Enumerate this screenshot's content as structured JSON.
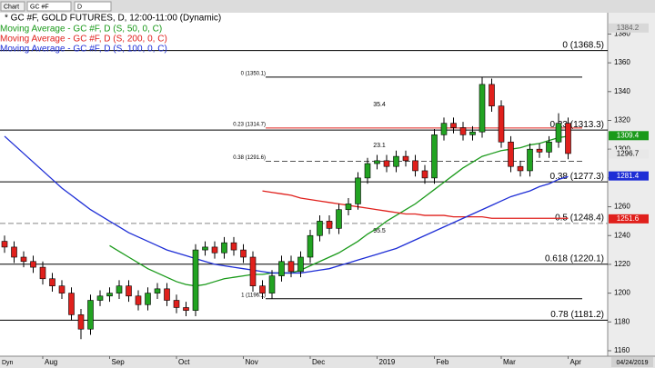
{
  "toolbar": {
    "tab": "Chart",
    "symbol": "GC #F",
    "interval": "D"
  },
  "chart_data": {
    "type": "candlestick",
    "title": "* GC #F, GOLD FUTURES, D, 12:00-11:00 (Dynamic)",
    "categories": [
      null,
      null,
      null,
      null,
      "Aug",
      null,
      null,
      null,
      null,
      null,
      null,
      "Sep",
      null,
      null,
      null,
      null,
      null,
      null,
      "Oct",
      null,
      null,
      null,
      null,
      null,
      null,
      "Nov",
      null,
      null,
      null,
      null,
      null,
      null,
      "Dec",
      null,
      null,
      null,
      null,
      null,
      null,
      "2019",
      null,
      null,
      null,
      null,
      null,
      "Feb",
      null,
      null,
      null,
      null,
      null,
      null,
      "Mar",
      null,
      null,
      null,
      null,
      null,
      null,
      "Apr"
    ],
    "open": [
      1236,
      1232,
      1225,
      1222,
      1218,
      1210,
      1205,
      1200,
      1185,
      1175,
      1195,
      1198,
      1200,
      1205,
      1198,
      1192,
      1200,
      1203,
      1195,
      1190,
      1188,
      1230,
      1232,
      1228,
      1235,
      1230,
      1225,
      1205,
      1200,
      1212,
      1222,
      1215,
      1225,
      1240,
      1250,
      1245,
      1258,
      1262,
      1280,
      1290,
      1292,
      1288,
      1295,
      1292,
      1285,
      1280,
      1310,
      1318,
      1315,
      1310,
      1312,
      1345,
      1330,
      1305,
      1288,
      1285,
      1300,
      1298,
      1305,
      1318
    ],
    "high": [
      1240,
      1236,
      1229,
      1226,
      1222,
      1214,
      1209,
      1204,
      1189,
      1199,
      1202,
      1204,
      1209,
      1209,
      1202,
      1204,
      1207,
      1207,
      1199,
      1194,
      1234,
      1236,
      1236,
      1239,
      1239,
      1234,
      1229,
      1209,
      1216,
      1226,
      1226,
      1229,
      1244,
      1254,
      1254,
      1262,
      1266,
      1284,
      1294,
      1296,
      1296,
      1299,
      1299,
      1296,
      1289,
      1314,
      1322,
      1322,
      1319,
      1316,
      1350,
      1349,
      1334,
      1309,
      1292,
      1304,
      1304,
      1309,
      1325,
      1322
    ],
    "low": [
      1228,
      1221,
      1218,
      1214,
      1206,
      1201,
      1196,
      1181,
      1168,
      1171,
      1191,
      1194,
      1196,
      1194,
      1188,
      1188,
      1196,
      1191,
      1186,
      1184,
      1184,
      1226,
      1224,
      1224,
      1226,
      1221,
      1201,
      1196,
      1196,
      1208,
      1211,
      1211,
      1221,
      1236,
      1241,
      1241,
      1254,
      1258,
      1276,
      1286,
      1284,
      1284,
      1288,
      1281,
      1276,
      1276,
      1306,
      1311,
      1306,
      1306,
      1308,
      1326,
      1301,
      1284,
      1281,
      1281,
      1294,
      1294,
      1301,
      1293
    ],
    "close": [
      1232,
      1225,
      1222,
      1218,
      1210,
      1205,
      1200,
      1185,
      1175,
      1195,
      1198,
      1200,
      1205,
      1198,
      1192,
      1200,
      1203,
      1195,
      1190,
      1188,
      1230,
      1232,
      1228,
      1235,
      1230,
      1225,
      1205,
      1200,
      1212,
      1222,
      1215,
      1225,
      1240,
      1250,
      1245,
      1258,
      1262,
      1280,
      1290,
      1292,
      1288,
      1295,
      1292,
      1285,
      1280,
      1310,
      1318,
      1315,
      1310,
      1312,
      1345,
      1330,
      1305,
      1288,
      1285,
      1300,
      1298,
      1305,
      1318,
      1297
    ],
    "up_color": "#22a322",
    "down_color": "#e0201c",
    "series": [
      {
        "name": "Moving Average - GC #F, D (S, 50, 0, C)",
        "color": "#1a9a1a",
        "values": [
          null,
          null,
          null,
          null,
          null,
          null,
          null,
          null,
          null,
          null,
          null,
          1233,
          1229,
          1225,
          1221,
          1217,
          1214,
          1211,
          1208,
          1206,
          1205,
          1206,
          1208,
          1210,
          1211,
          1212,
          1213,
          1213,
          1214,
          1214,
          1214,
          1216,
          1219,
          1222,
          1225,
          1228,
          1232,
          1236,
          1241,
          1245,
          1250,
          1254,
          1258,
          1262,
          1267,
          1272,
          1277,
          1282,
          1287,
          1291,
          1295,
          1297,
          1299,
          1300,
          1301,
          1303,
          1304,
          1306,
          1308,
          1309
        ]
      },
      {
        "name": "Moving Average - GC #F, D (S, 200, 0, C)",
        "color": "#e0201c",
        "values": [
          null,
          null,
          null,
          null,
          null,
          null,
          null,
          null,
          null,
          null,
          null,
          null,
          null,
          null,
          null,
          null,
          null,
          null,
          null,
          null,
          null,
          null,
          null,
          null,
          null,
          null,
          null,
          1271,
          1270,
          1269,
          1268,
          1266,
          1265,
          1264,
          1263,
          1262,
          1261,
          1260,
          1259,
          1258,
          1257,
          1256,
          1255,
          1255,
          1254,
          1254,
          1254,
          1253,
          1253,
          1253,
          1253,
          1252,
          1252,
          1252,
          1252,
          1252,
          1252,
          1252,
          1252,
          1252
        ]
      },
      {
        "name": "Moving Average - GC #F, D (S, 100, 0, C)",
        "color": "#1e2ed6",
        "values": [
          1309,
          1303,
          1297,
          1291,
          1285,
          1279,
          1273,
          1268,
          1263,
          1258,
          1254,
          1250,
          1246,
          1242,
          1239,
          1236,
          1233,
          1230,
          1228,
          1226,
          1224,
          1222,
          1220,
          1219,
          1218,
          1217,
          1216,
          1215,
          1214,
          1214,
          1214,
          1214,
          1215,
          1216,
          1217,
          1219,
          1221,
          1223,
          1225,
          1227,
          1229,
          1231,
          1234,
          1237,
          1240,
          1243,
          1246,
          1249,
          1252,
          1255,
          1258,
          1261,
          1264,
          1267,
          1269,
          1271,
          1274,
          1276,
          1279,
          1281
        ]
      }
    ],
    "ylim": [
      1156.2,
      1394.8
    ],
    "yticks": [
      1160,
      1180,
      1200,
      1220,
      1240,
      1260,
      1280,
      1300,
      1320,
      1340,
      1360,
      1380
    ],
    "price_tags": [
      {
        "value": 1384.2,
        "color": "#d8d8d8",
        "text_color": "#666666"
      },
      {
        "value": 1309.4,
        "color": "#1a9a1a",
        "text_color": "#ffffff"
      },
      {
        "value": 1296.7,
        "color": "#e8e8e8",
        "text_color": "#000000"
      },
      {
        "value": 1281.4,
        "color": "#1e2ed6",
        "text_color": "#ffffff"
      },
      {
        "value": 1251.6,
        "color": "#e0201c",
        "text_color": "#ffffff"
      }
    ],
    "fib_levels": [
      {
        "label": "0 (1368.5)",
        "value": 1368.5,
        "color": "#000000",
        "style": "solid"
      },
      {
        "label": "0.23 (1313.3)",
        "value": 1313.3,
        "color": "#000000",
        "style": "solid"
      },
      {
        "label": "0.38 (1277.3)",
        "value": 1277.3,
        "color": "#000000",
        "style": "solid"
      },
      {
        "label": "0.5 (1248.4)",
        "value": 1248.4,
        "color": "#888888",
        "style": "dashed"
      },
      {
        "label": "0.618 (1220.1)",
        "value": 1220.1,
        "color": "#000000",
        "style": "solid"
      },
      {
        "label": "0.78 (1181.2)",
        "value": 1181.2,
        "color": "#000000",
        "style": "solid"
      }
    ],
    "fib_levels_2": [
      {
        "label": "0 (1350.1)",
        "value": 1350.1,
        "color": "#000000",
        "style": "solid"
      },
      {
        "label": "0.23 (1314.7)",
        "value": 1314.7,
        "color": "#e0201c",
        "style": "solid"
      },
      {
        "label": "0.38 (1291.6)",
        "value": 1291.6,
        "color": "#555555",
        "style": "dashed"
      },
      {
        "label": "1 (1196.1)",
        "value": 1196.1,
        "color": "#000000",
        "style": "solid"
      }
    ],
    "annotations": [
      "35.4",
      "23.1",
      "95.5"
    ],
    "corner_label": "Dyn",
    "date_label": "04/24/2019"
  }
}
